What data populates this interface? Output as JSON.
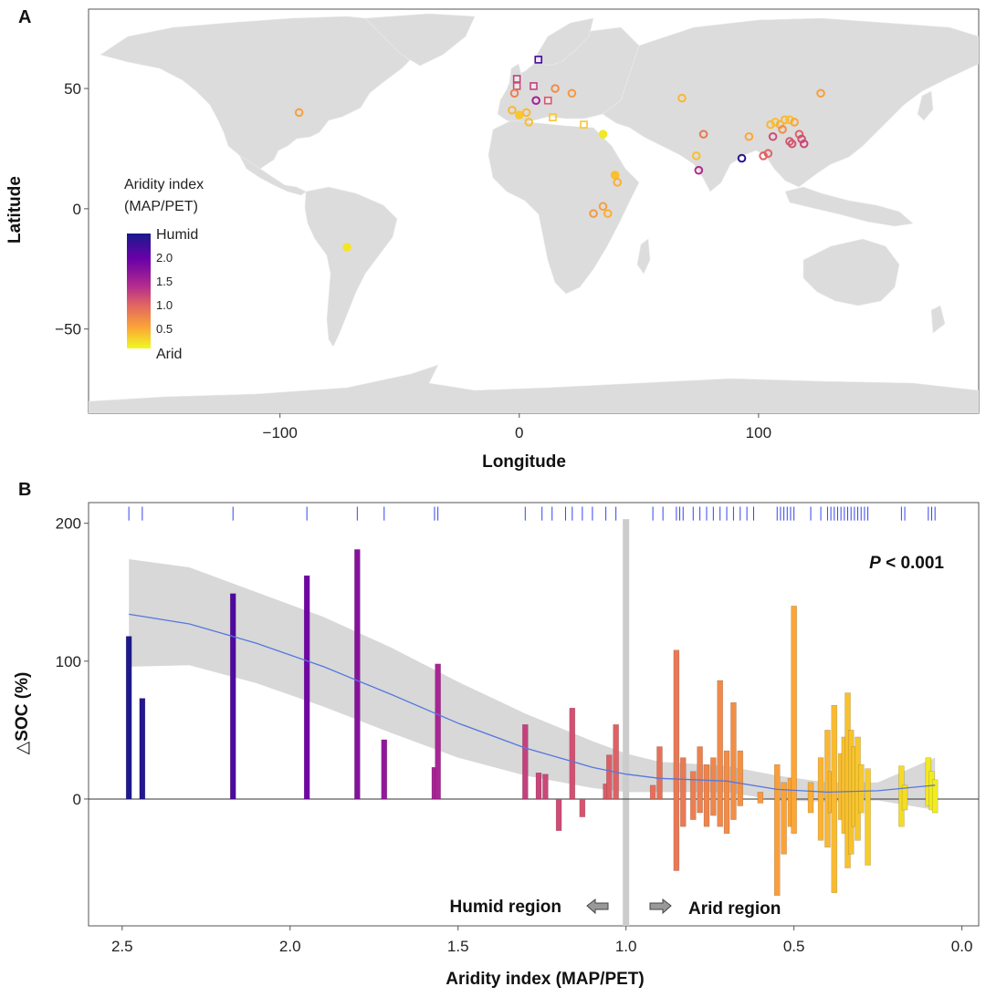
{
  "panels": {
    "a": {
      "label": "A"
    },
    "b": {
      "label": "B"
    }
  },
  "chart_data": [
    {
      "type": "scatter",
      "panel": "A",
      "title": "",
      "xlabel": "Longitude",
      "ylabel": "Latitude",
      "xlim": [
        -180,
        192
      ],
      "ylim": [
        -85,
        83
      ],
      "xticks": [
        {
          "v": -100,
          "label": "−100"
        },
        {
          "v": 0,
          "label": "0"
        },
        {
          "v": 100,
          "label": "100"
        }
      ],
      "yticks": [
        {
          "v": 50,
          "label": "50"
        },
        {
          "v": 0,
          "label": "0"
        },
        {
          "v": -50,
          "label": "−50"
        }
      ],
      "legend": {
        "title": [
          "Aridity index",
          "(MAP/PET)"
        ],
        "high_label": "Humid",
        "low_label": "Arid",
        "ticks": [
          "2.0",
          "1.5",
          "1.0",
          "0.5"
        ],
        "range": [
          0,
          2.5
        ]
      },
      "points": [
        {
          "lon": -92,
          "lat": 40,
          "ai": 0.55,
          "shape": "circle"
        },
        {
          "lon": -72,
          "lat": -16,
          "ai": 0.12,
          "shape": "circle",
          "filled": true
        },
        {
          "lon": 8,
          "lat": 62,
          "ai": 2.2,
          "shape": "square"
        },
        {
          "lon": -1,
          "lat": 54,
          "ai": 1.3,
          "shape": "square"
        },
        {
          "lon": -1,
          "lat": 51,
          "ai": 1.2,
          "shape": "square"
        },
        {
          "lon": -2,
          "lat": 48,
          "ai": 0.8,
          "shape": "circle"
        },
        {
          "lon": 6,
          "lat": 51,
          "ai": 1.3,
          "shape": "square"
        },
        {
          "lon": 7,
          "lat": 45,
          "ai": 1.6,
          "shape": "circle"
        },
        {
          "lon": 12,
          "lat": 45,
          "ai": 1.1,
          "shape": "square"
        },
        {
          "lon": 15,
          "lat": 50,
          "ai": 0.7,
          "shape": "circle"
        },
        {
          "lon": 22,
          "lat": 48,
          "ai": 0.6,
          "shape": "circle"
        },
        {
          "lon": -3,
          "lat": 41,
          "ai": 0.4,
          "shape": "circle"
        },
        {
          "lon": 0,
          "lat": 39,
          "ai": 0.3,
          "shape": "circle",
          "filled": true
        },
        {
          "lon": 3,
          "lat": 40,
          "ai": 0.4,
          "shape": "circle"
        },
        {
          "lon": 4,
          "lat": 36,
          "ai": 0.35,
          "shape": "circle"
        },
        {
          "lon": 14,
          "lat": 38,
          "ai": 0.3,
          "shape": "square"
        },
        {
          "lon": 27,
          "lat": 35,
          "ai": 0.3,
          "shape": "square"
        },
        {
          "lon": 35,
          "lat": 31,
          "ai": 0.1,
          "shape": "circle",
          "filled": true
        },
        {
          "lon": 40,
          "lat": 14,
          "ai": 0.35,
          "shape": "circle",
          "filled": true
        },
        {
          "lon": 41,
          "lat": 11,
          "ai": 0.45,
          "shape": "circle"
        },
        {
          "lon": 35,
          "lat": 1,
          "ai": 0.55,
          "shape": "circle"
        },
        {
          "lon": 37,
          "lat": -2,
          "ai": 0.45,
          "shape": "circle"
        },
        {
          "lon": 31,
          "lat": -2,
          "ai": 0.6,
          "shape": "circle"
        },
        {
          "lon": 68,
          "lat": 46,
          "ai": 0.4,
          "shape": "circle"
        },
        {
          "lon": 77,
          "lat": 31,
          "ai": 0.85,
          "shape": "circle"
        },
        {
          "lon": 74,
          "lat": 22,
          "ai": 0.35,
          "shape": "circle"
        },
        {
          "lon": 75,
          "lat": 16,
          "ai": 1.5,
          "shape": "circle"
        },
        {
          "lon": 93,
          "lat": 21,
          "ai": 2.4,
          "shape": "circle"
        },
        {
          "lon": 96,
          "lat": 30,
          "ai": 0.5,
          "shape": "circle"
        },
        {
          "lon": 102,
          "lat": 22,
          "ai": 1.05,
          "shape": "circle"
        },
        {
          "lon": 104,
          "lat": 23,
          "ai": 1.0,
          "shape": "circle"
        },
        {
          "lon": 106,
          "lat": 30,
          "ai": 1.2,
          "shape": "circle"
        },
        {
          "lon": 105,
          "lat": 35,
          "ai": 0.4,
          "shape": "circle"
        },
        {
          "lon": 107,
          "lat": 36,
          "ai": 0.35,
          "shape": "circle"
        },
        {
          "lon": 109,
          "lat": 35,
          "ai": 0.45,
          "shape": "circle"
        },
        {
          "lon": 111,
          "lat": 37,
          "ai": 0.4,
          "shape": "circle"
        },
        {
          "lon": 113,
          "lat": 37,
          "ai": 0.35,
          "shape": "circle"
        },
        {
          "lon": 115,
          "lat": 36,
          "ai": 0.5,
          "shape": "circle"
        },
        {
          "lon": 110,
          "lat": 33,
          "ai": 0.7,
          "shape": "circle"
        },
        {
          "lon": 113,
          "lat": 28,
          "ai": 1.1,
          "shape": "circle"
        },
        {
          "lon": 114,
          "lat": 27,
          "ai": 1.15,
          "shape": "circle"
        },
        {
          "lon": 117,
          "lat": 31,
          "ai": 1.0,
          "shape": "circle"
        },
        {
          "lon": 118,
          "lat": 29,
          "ai": 1.2,
          "shape": "circle"
        },
        {
          "lon": 119,
          "lat": 27,
          "ai": 1.25,
          "shape": "circle"
        },
        {
          "lon": 126,
          "lat": 48,
          "ai": 0.55,
          "shape": "circle"
        }
      ]
    },
    {
      "type": "bar",
      "panel": "B",
      "title": "",
      "xlabel": "Aridity index (MAP/PET)",
      "ylabel": "△SOC (%)",
      "x_reversed": true,
      "xlim": [
        2.6,
        -0.05
      ],
      "ylim": [
        -92,
        215
      ],
      "xticks": [
        {
          "v": 2.5,
          "label": "2.5"
        },
        {
          "v": 2.0,
          "label": "2.0"
        },
        {
          "v": 1.5,
          "label": "1.5"
        },
        {
          "v": 1.0,
          "label": "1.0"
        },
        {
          "v": 0.5,
          "label": "0.5"
        },
        {
          "v": 0.0,
          "label": "0.0"
        }
      ],
      "yticks": [
        {
          "v": 200,
          "label": "200"
        },
        {
          "v": 100,
          "label": "100"
        },
        {
          "v": 0,
          "label": "0"
        }
      ],
      "annotation": {
        "p_italic": "P",
        "p_rest": " < 0.001"
      },
      "regions": {
        "humid": "Humid region",
        "arid": "Arid region",
        "divider_ai": 1.0
      },
      "smooth": {
        "ai": [
          2.48,
          2.3,
          2.1,
          1.9,
          1.7,
          1.5,
          1.3,
          1.1,
          1.0,
          0.9,
          0.7,
          0.55,
          0.4,
          0.25,
          0.08
        ],
        "fit": [
          134,
          127,
          113,
          96,
          76,
          55,
          37,
          23,
          18,
          15,
          13,
          7,
          5,
          6,
          10
        ],
        "upper": [
          174,
          168,
          150,
          132,
          110,
          85,
          62,
          42,
          33,
          27,
          24,
          17,
          12,
          12,
          30
        ],
        "lower": [
          96,
          97,
          84,
          67,
          48,
          30,
          17,
          8,
          5,
          5,
          5,
          -1,
          -2,
          -1,
          -8
        ]
      },
      "rug": [
        2.48,
        2.44,
        2.17,
        1.95,
        1.8,
        1.72,
        1.57,
        1.56,
        1.3,
        1.25,
        1.22,
        1.18,
        1.16,
        1.13,
        1.1,
        1.06,
        1.03,
        0.92,
        0.89,
        0.85,
        0.84,
        0.83,
        0.8,
        0.78,
        0.76,
        0.74,
        0.72,
        0.7,
        0.68,
        0.66,
        0.64,
        0.62,
        0.55,
        0.54,
        0.53,
        0.52,
        0.51,
        0.5,
        0.45,
        0.42,
        0.4,
        0.39,
        0.38,
        0.37,
        0.36,
        0.35,
        0.34,
        0.33,
        0.32,
        0.31,
        0.3,
        0.29,
        0.28,
        0.18,
        0.17,
        0.1,
        0.09,
        0.08
      ],
      "bars": [
        {
          "ai": 2.48,
          "lo": 0,
          "hi": 118
        },
        {
          "ai": 2.44,
          "lo": 0,
          "hi": 73
        },
        {
          "ai": 2.17,
          "lo": 0,
          "hi": 149
        },
        {
          "ai": 1.95,
          "lo": 0,
          "hi": 162
        },
        {
          "ai": 1.8,
          "lo": 0,
          "hi": 181
        },
        {
          "ai": 1.72,
          "lo": 0,
          "hi": 43
        },
        {
          "ai": 1.57,
          "lo": 0,
          "hi": 23
        },
        {
          "ai": 1.56,
          "lo": 0,
          "hi": 98
        },
        {
          "ai": 1.3,
          "lo": 0,
          "hi": 54
        },
        {
          "ai": 1.26,
          "lo": 0,
          "hi": 19
        },
        {
          "ai": 1.24,
          "lo": 0,
          "hi": 18
        },
        {
          "ai": 1.2,
          "lo": -23,
          "hi": 0
        },
        {
          "ai": 1.16,
          "lo": 0,
          "hi": 66
        },
        {
          "ai": 1.13,
          "lo": -13,
          "hi": 0
        },
        {
          "ai": 1.06,
          "lo": 0,
          "hi": 11
        },
        {
          "ai": 1.05,
          "lo": 0,
          "hi": 32
        },
        {
          "ai": 1.03,
          "lo": 0,
          "hi": 54
        },
        {
          "ai": 0.92,
          "lo": 0,
          "hi": 10
        },
        {
          "ai": 0.9,
          "lo": 0,
          "hi": 38
        },
        {
          "ai": 0.85,
          "lo": -52,
          "hi": 108
        },
        {
          "ai": 0.83,
          "lo": -20,
          "hi": 30
        },
        {
          "ai": 0.8,
          "lo": -15,
          "hi": 20
        },
        {
          "ai": 0.78,
          "lo": -10,
          "hi": 38
        },
        {
          "ai": 0.76,
          "lo": -20,
          "hi": 25
        },
        {
          "ai": 0.74,
          "lo": -12,
          "hi": 30
        },
        {
          "ai": 0.72,
          "lo": -20,
          "hi": 86
        },
        {
          "ai": 0.7,
          "lo": -25,
          "hi": 35
        },
        {
          "ai": 0.68,
          "lo": -15,
          "hi": 70
        },
        {
          "ai": 0.66,
          "lo": -5,
          "hi": 35
        },
        {
          "ai": 0.6,
          "lo": -3,
          "hi": 5
        },
        {
          "ai": 0.55,
          "lo": -70,
          "hi": 25
        },
        {
          "ai": 0.53,
          "lo": -40,
          "hi": 12
        },
        {
          "ai": 0.51,
          "lo": -20,
          "hi": 15
        },
        {
          "ai": 0.5,
          "lo": -25,
          "hi": 140
        },
        {
          "ai": 0.45,
          "lo": -10,
          "hi": 12
        },
        {
          "ai": 0.42,
          "lo": -30,
          "hi": 30
        },
        {
          "ai": 0.4,
          "lo": -35,
          "hi": 50
        },
        {
          "ai": 0.39,
          "lo": -10,
          "hi": 20
        },
        {
          "ai": 0.38,
          "lo": -68,
          "hi": 68
        },
        {
          "ai": 0.36,
          "lo": -15,
          "hi": 33
        },
        {
          "ai": 0.35,
          "lo": -25,
          "hi": 45
        },
        {
          "ai": 0.34,
          "lo": -50,
          "hi": 77
        },
        {
          "ai": 0.33,
          "lo": -40,
          "hi": 50
        },
        {
          "ai": 0.32,
          "lo": -20,
          "hi": 38
        },
        {
          "ai": 0.31,
          "lo": -30,
          "hi": 45
        },
        {
          "ai": 0.3,
          "lo": -10,
          "hi": 25
        },
        {
          "ai": 0.28,
          "lo": -48,
          "hi": 22
        },
        {
          "ai": 0.18,
          "lo": -20,
          "hi": 24
        },
        {
          "ai": 0.17,
          "lo": -8,
          "hi": 10
        },
        {
          "ai": 0.1,
          "lo": -5,
          "hi": 30
        },
        {
          "ai": 0.09,
          "lo": -8,
          "hi": 20
        },
        {
          "ai": 0.08,
          "lo": -10,
          "hi": 14
        }
      ]
    }
  ]
}
